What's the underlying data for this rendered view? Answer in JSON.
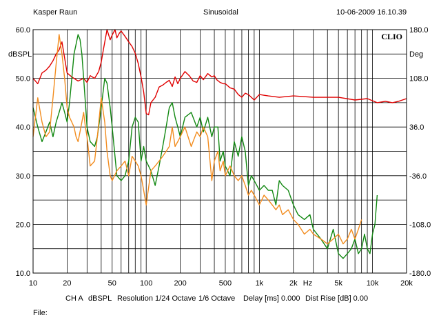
{
  "header": {
    "author": "Kasper Raun",
    "mode": "Sinusoidal",
    "datetime": "10-06-2009 16.10.39"
  },
  "brand": "CLIO",
  "footer": {
    "channel": "CH A",
    "units": "dBSPL",
    "resolution": "Resolution 1/24 Octave",
    "smoothing": "1/6 Octave",
    "delay": "Delay [ms] 0.000",
    "dist_rise": "Dist Rise [dB] 0.00",
    "file_label": "File:"
  },
  "colors": {
    "red": "#e00000",
    "green": "#118811",
    "orange": "#f28c1e",
    "grid": "#000000"
  },
  "chart_data": {
    "type": "line",
    "title": "",
    "xlabel": "Hz",
    "ylabel": "dBSPL",
    "y2label": "Deg",
    "xscale": "log",
    "xlim": [
      10,
      20000
    ],
    "ylim": [
      10,
      60
    ],
    "y2lim": [
      -180,
      180
    ],
    "grid": true,
    "x_tick_labels": [
      "10",
      "20",
      "50",
      "100",
      "200",
      "500",
      "1k",
      "2k",
      "5k",
      "10k",
      "20k"
    ],
    "x_tick_values": [
      10,
      20,
      50,
      100,
      200,
      500,
      1000,
      2000,
      5000,
      10000,
      20000
    ],
    "y_ticks": [
      "60.0",
      "50.0",
      "40.0",
      "30.0",
      "20.0",
      "10.0"
    ],
    "y_tick_values": [
      60,
      50,
      40,
      30,
      20,
      10
    ],
    "y2_ticks": [
      "180.0",
      "108.0",
      "36.0",
      "-36.0",
      "-108.0",
      "-180.0"
    ],
    "y2_tick_values": [
      180,
      108,
      36,
      -36,
      -108,
      -180
    ],
    "series": [
      {
        "color": "#e00000",
        "axis": "right",
        "x": [
          10,
          11,
          12,
          13,
          14,
          15,
          16,
          17,
          18,
          19,
          20,
          22,
          25,
          28,
          30,
          32,
          35,
          38,
          40,
          42,
          45,
          48,
          50,
          53,
          55,
          58,
          60,
          65,
          70,
          75,
          80,
          85,
          90,
          95,
          100,
          105,
          110,
          120,
          130,
          140,
          150,
          160,
          170,
          180,
          190,
          200,
          220,
          240,
          260,
          280,
          300,
          320,
          350,
          380,
          400,
          420,
          450,
          480,
          500,
          550,
          600,
          650,
          700,
          750,
          800,
          900,
          1000,
          1200,
          1500,
          2000,
          3000,
          5000,
          7000,
          9000,
          11000,
          13000,
          15000,
          17000,
          20000
        ],
        "y": [
          108,
          100,
          116,
          120,
          126,
          134,
          144,
          150,
          162,
          138,
          116,
          110,
          104,
          108,
          102,
          112,
          108,
          118,
          132,
          152,
          180,
          165,
          172,
          180,
          168,
          175,
          178,
          170,
          162,
          155,
          145,
          130,
          110,
          88,
          56,
          54,
          72,
          80,
          95,
          98,
          102,
          105,
          96,
          110,
          100,
          108,
          118,
          112,
          104,
          102,
          112,
          106,
          115,
          110,
          112,
          106,
          102,
          100,
          100,
          94,
          92,
          84,
          80,
          86,
          84,
          76,
          84,
          82,
          80,
          82,
          80,
          80,
          76,
          78,
          72,
          74,
          72,
          74,
          78
        ]
      },
      {
        "color": "#118811",
        "axis": "left",
        "x": [
          10,
          11,
          12,
          13,
          14,
          15,
          16,
          17,
          18,
          19,
          20,
          21,
          22,
          23,
          24,
          25,
          26,
          27,
          28,
          29,
          30,
          32,
          35,
          37,
          40,
          43,
          45,
          48,
          50,
          55,
          60,
          65,
          70,
          75,
          80,
          85,
          90,
          95,
          100,
          110,
          120,
          130,
          140,
          150,
          160,
          170,
          180,
          190,
          200,
          220,
          250,
          280,
          300,
          320,
          350,
          380,
          400,
          430,
          450,
          480,
          500,
          550,
          600,
          650,
          700,
          750,
          800,
          850,
          900,
          950,
          1000,
          1100,
          1200,
          1300,
          1400,
          1500,
          1600,
          1800,
          2000,
          2200,
          2500,
          2800,
          3000,
          3500,
          4000,
          4500,
          5000,
          5500,
          6000,
          6500,
          7000,
          7500,
          8000,
          8500,
          9000,
          9500,
          10000,
          10500,
          11000
        ],
        "y": [
          44,
          40,
          37,
          39,
          41,
          38,
          41,
          43,
          45,
          43,
          41,
          45,
          50,
          55,
          57,
          59,
          58,
          55,
          50,
          45,
          40,
          37,
          36,
          38,
          44,
          50,
          49,
          44,
          40,
          30,
          29,
          30,
          33,
          40,
          42,
          41,
          33,
          36,
          33,
          31,
          28,
          32,
          36,
          40,
          44,
          45,
          42,
          40,
          38,
          42,
          43,
          40,
          42,
          39,
          42,
          38,
          40,
          40,
          33,
          35,
          32,
          30,
          37,
          34,
          38,
          35,
          28,
          30,
          29,
          28,
          27,
          28,
          27,
          27,
          24,
          29,
          28,
          27,
          24,
          22,
          21,
          22,
          19,
          17,
          15,
          19,
          14,
          13,
          14,
          15,
          17,
          14,
          15,
          18,
          15,
          14,
          18,
          20,
          26
        ]
      },
      {
        "color": "#f28c1e",
        "axis": "left",
        "x": [
          10,
          11,
          12,
          13,
          14,
          15,
          16,
          17,
          18,
          19,
          20,
          21,
          22,
          23,
          24,
          25,
          26,
          27,
          28,
          29,
          30,
          32,
          35,
          37,
          40,
          43,
          45,
          48,
          50,
          55,
          60,
          65,
          70,
          75,
          80,
          85,
          90,
          95,
          100,
          110,
          120,
          130,
          140,
          150,
          160,
          170,
          180,
          190,
          200,
          220,
          250,
          280,
          300,
          320,
          350,
          380,
          400,
          430,
          450,
          480,
          500,
          550,
          600,
          650,
          700,
          750,
          800,
          850,
          900,
          950,
          1000,
          1100,
          1200,
          1300,
          1400,
          1500,
          1600,
          1800,
          2000,
          2200,
          2500,
          2800,
          3000,
          3500,
          4000,
          4500,
          5000,
          5500,
          6000,
          6500,
          7000,
          7500,
          8000
        ],
        "y": [
          38,
          46,
          41,
          38,
          39,
          46,
          53,
          59,
          55,
          50,
          44,
          42,
          41,
          40,
          38,
          37,
          39,
          41,
          43,
          40,
          38,
          32,
          33,
          38,
          46,
          41,
          35,
          30,
          29,
          31,
          32,
          33,
          30,
          34,
          33,
          32,
          30,
          27,
          24,
          31,
          32,
          33,
          34,
          35,
          36,
          40,
          36,
          37,
          38,
          40,
          36,
          39,
          38,
          40,
          38,
          29,
          33,
          35,
          31,
          33,
          30,
          32,
          30,
          29,
          30,
          28,
          26,
          27,
          26,
          25,
          24,
          26,
          25,
          24,
          23,
          24,
          22,
          23,
          21,
          20,
          18,
          19,
          18,
          17,
          16,
          17,
          18,
          16,
          17,
          19,
          17,
          19,
          21
        ]
      }
    ]
  }
}
